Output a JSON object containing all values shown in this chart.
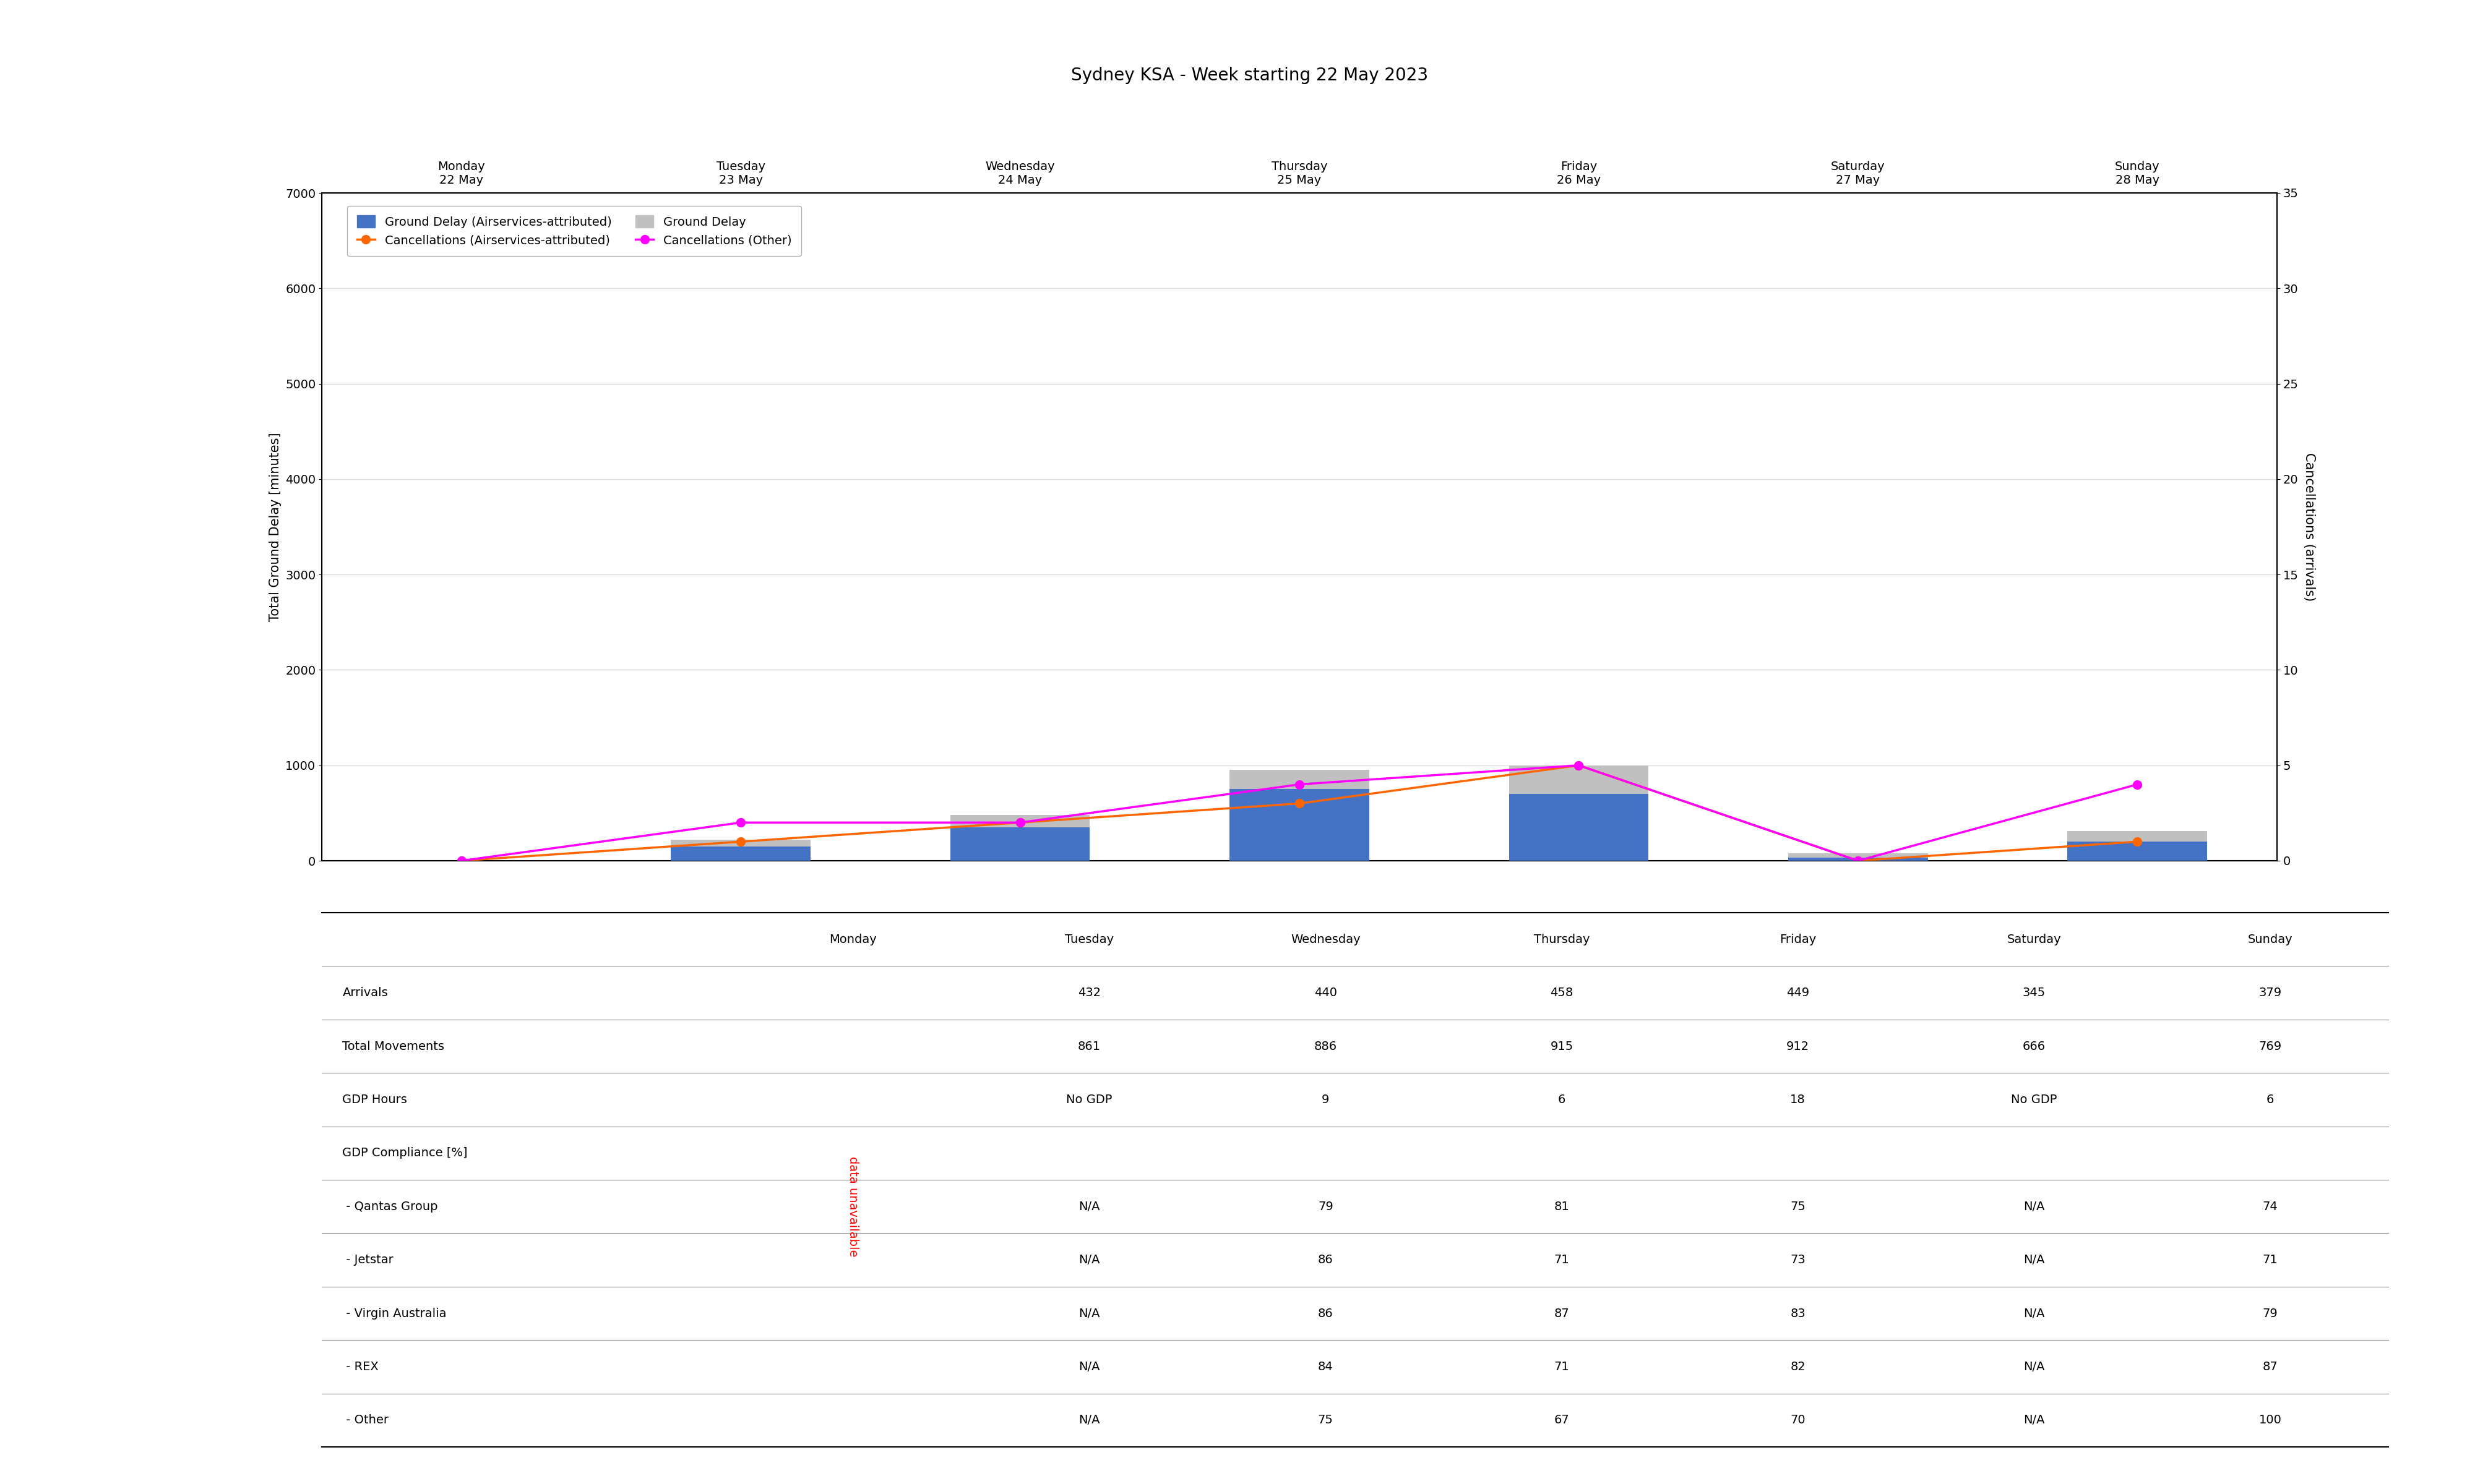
{
  "title": "Sydney KSA - Week starting 22 May 2023",
  "days_top": [
    "Monday\n22 May",
    "Tuesday\n23 May",
    "Wednesday\n24 May",
    "Thursday\n25 May",
    "Friday\n26 May",
    "Saturday\n27 May",
    "Sunday\n28 May"
  ],
  "days_short": [
    "Monday",
    "Tuesday",
    "Wednesday",
    "Thursday",
    "Friday",
    "Saturday",
    "Sunday"
  ],
  "x_positions": [
    1,
    2,
    3,
    4,
    5,
    6,
    7
  ],
  "ground_delay_attributed": [
    0,
    150,
    350,
    750,
    700,
    30,
    200
  ],
  "ground_delay_total": [
    0,
    220,
    480,
    950,
    1000,
    80,
    310
  ],
  "cancellations_attributed": [
    0,
    1,
    2,
    3,
    5,
    0,
    1
  ],
  "cancellations_other": [
    0,
    2,
    2,
    4,
    5,
    0,
    4
  ],
  "bar_color_attributed": "#4472c4",
  "bar_color_total": "#c0c0c0",
  "line_color_attributed": "#ff6600",
  "line_color_other": "#ff00ff",
  "ylim_left": [
    0,
    7000
  ],
  "ylim_right": [
    0,
    35
  ],
  "yticks_left": [
    0,
    1000,
    2000,
    3000,
    4000,
    5000,
    6000,
    7000
  ],
  "yticks_right": [
    0,
    5,
    10,
    15,
    20,
    25,
    30,
    35
  ],
  "ylabel_left": "Total Ground Delay [minutes]",
  "ylabel_right": "Cancellations (arrivals)",
  "legend_labels": [
    "Ground Delay (Airservices-attributed)",
    "Ground Delay",
    "Cancellations (Airservices-attributed)",
    "Cancellations (Other)"
  ],
  "table_rows": [
    "Arrivals",
    "Total Movements",
    "GDP Hours",
    "GDP Compliance [%]",
    " - Qantas Group",
    " - Jetstar",
    " - Virgin Australia",
    " - REX",
    " - Other"
  ],
  "table_data": {
    "Monday": [
      "",
      "",
      "",
      "",
      "",
      "",
      "",
      "",
      ""
    ],
    "Tuesday": [
      "432",
      "861",
      "No GDP",
      "",
      "N/A",
      "N/A",
      "N/A",
      "N/A",
      "N/A"
    ],
    "Wednesday": [
      "440",
      "886",
      "9",
      "",
      "79",
      "86",
      "86",
      "84",
      "75"
    ],
    "Thursday": [
      "458",
      "915",
      "6",
      "",
      "81",
      "71",
      "87",
      "71",
      "67"
    ],
    "Friday": [
      "449",
      "912",
      "18",
      "",
      "75",
      "73",
      "83",
      "82",
      "70"
    ],
    "Saturday": [
      "345",
      "666",
      "No GDP",
      "",
      "N/A",
      "N/A",
      "N/A",
      "N/A",
      "N/A"
    ],
    "Sunday": [
      "379",
      "769",
      "6",
      "",
      "74",
      "71",
      "79",
      "87",
      "100"
    ]
  },
  "bar_width": 0.5,
  "background_color": "#ffffff",
  "grid_color": "#dddddd",
  "title_fontsize": 20,
  "axis_label_fontsize": 15,
  "tick_fontsize": 14,
  "legend_fontsize": 14,
  "table_fontsize": 14
}
